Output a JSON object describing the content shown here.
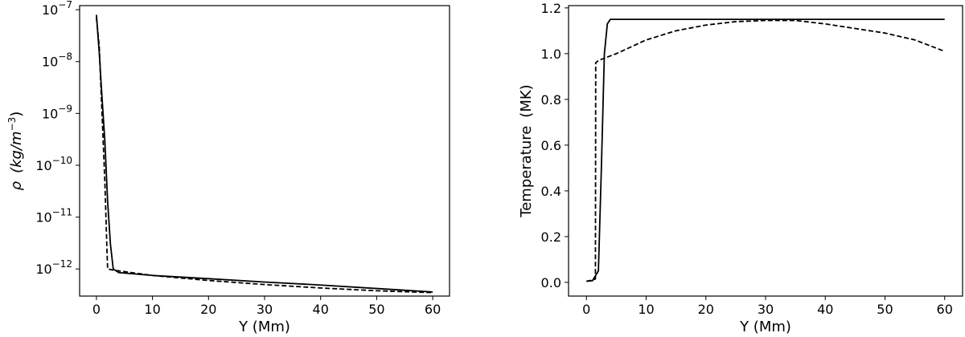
{
  "chart_data": [
    {
      "type": "line",
      "xlabel": "Y (Mm)",
      "ylabel_symbol": "ρ",
      "ylabel_units": "(kg/m",
      "ylabel_units_exp": "−3",
      "ylabel_units_close": ")",
      "yscale": "log",
      "xlim": [
        -3,
        63
      ],
      "ylim": [
        3e-13,
        1.2e-07
      ],
      "xticks": [
        0,
        10,
        20,
        30,
        40,
        50,
        60
      ],
      "xtick_labels": [
        "0",
        "10",
        "20",
        "30",
        "40",
        "50",
        "60"
      ],
      "yticks": [
        1e-07,
        1e-08,
        1e-09,
        1e-10,
        1e-11,
        1e-12
      ],
      "ytick_bases": [
        "10",
        "10",
        "10",
        "10",
        "10",
        "10"
      ],
      "ytick_exponents": [
        "−7",
        "−8",
        "−9",
        "−10",
        "−11",
        "−12"
      ],
      "grid": false,
      "series": [
        {
          "style": "solid",
          "x": [
            0,
            0.5,
            1.0,
            1.5,
            2.0,
            2.5,
            3.0,
            4.0,
            10,
            20,
            30,
            40,
            50,
            60
          ],
          "y": [
            8e-08,
            1.5e-08,
            2e-09,
            3e-10,
            2e-11,
            3e-12,
            1e-12,
            8.5e-13,
            7.5e-13,
            6.5e-13,
            5.6e-13,
            4.9e-13,
            4.2e-13,
            3.6e-13
          ]
        },
        {
          "style": "dashed",
          "x": [
            0,
            0.5,
            1.0,
            1.5,
            1.9,
            2.0,
            3.0,
            10,
            20,
            30,
            40,
            50,
            60
          ],
          "y": [
            7e-08,
            2e-08,
            1e-09,
            5e-11,
            2e-12,
            1e-12,
            9.5e-13,
            7.5e-13,
            6e-13,
            5e-13,
            4.3e-13,
            3.8e-13,
            3.5e-13
          ]
        }
      ]
    },
    {
      "type": "line",
      "xlabel": "Y (Mm)",
      "ylabel": "Temperature",
      "ylabel_units": "(MK)",
      "xlim": [
        -3,
        63
      ],
      "ylim": [
        -0.06,
        1.21
      ],
      "xticks": [
        0,
        10,
        20,
        30,
        40,
        50,
        60
      ],
      "xtick_labels": [
        "0",
        "10",
        "20",
        "30",
        "40",
        "50",
        "60"
      ],
      "yticks": [
        0.0,
        0.2,
        0.4,
        0.6,
        0.8,
        1.0,
        1.2
      ],
      "ytick_labels": [
        "0.0",
        "0.2",
        "0.4",
        "0.6",
        "0.8",
        "1.0",
        "1.2"
      ],
      "grid": false,
      "series": [
        {
          "style": "solid",
          "x": [
            0,
            1.0,
            2.0,
            2.5,
            3.0,
            3.5,
            4.0,
            5,
            60
          ],
          "y": [
            0.005,
            0.007,
            0.05,
            0.5,
            1.0,
            1.13,
            1.15,
            1.15,
            1.15
          ]
        },
        {
          "style": "dashed",
          "x": [
            0,
            1.0,
            1.5,
            1.55,
            2.0,
            5,
            10,
            15,
            20,
            25,
            30,
            35,
            40,
            45,
            50,
            55,
            60
          ],
          "y": [
            0.005,
            0.01,
            0.015,
            0.96,
            0.97,
            1.0,
            1.06,
            1.1,
            1.125,
            1.14,
            1.145,
            1.145,
            1.13,
            1.11,
            1.09,
            1.06,
            1.01
          ]
        }
      ]
    }
  ]
}
